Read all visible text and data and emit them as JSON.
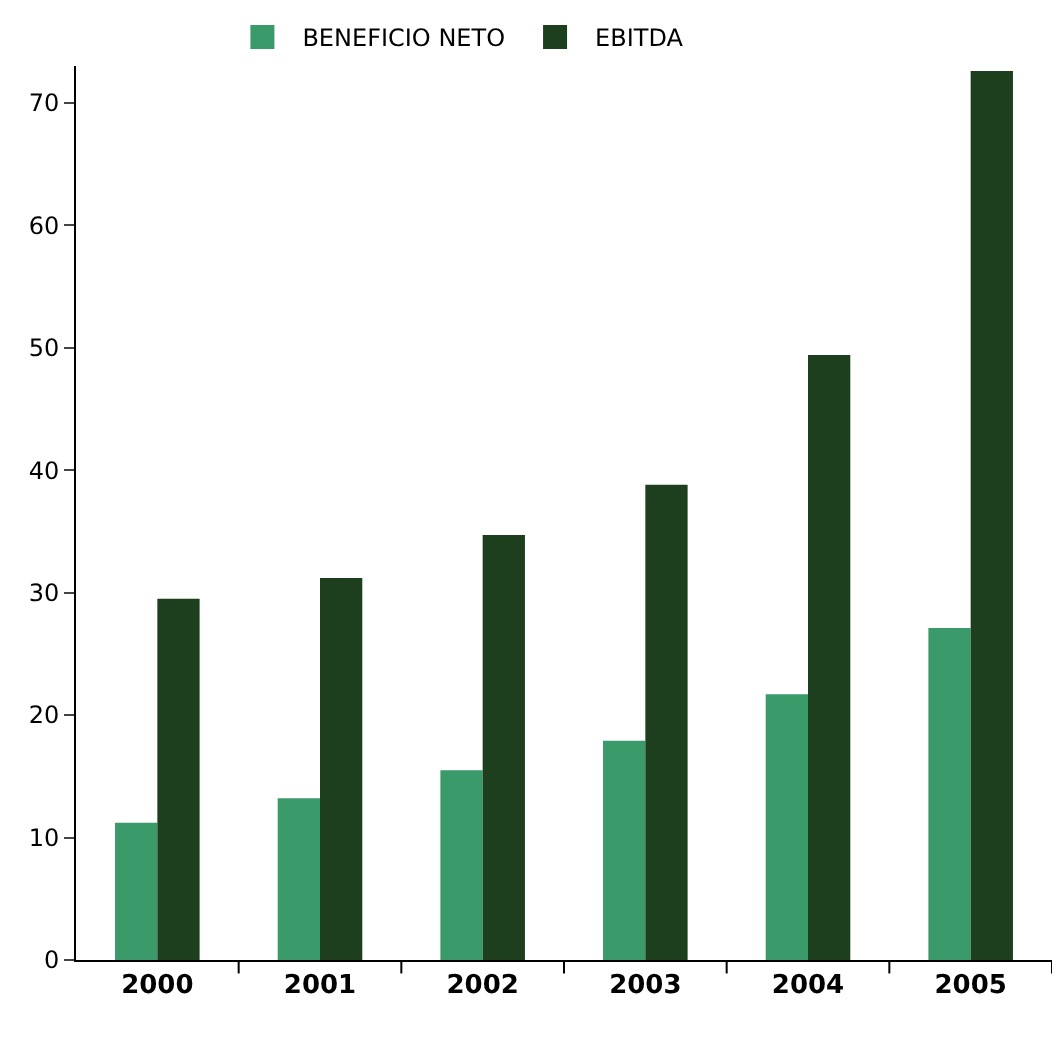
{
  "chart_data": {
    "type": "bar",
    "categories": [
      "2000",
      "2001",
      "2002",
      "2003",
      "2004",
      "2005"
    ],
    "series": [
      {
        "name": "BENEFICIO NETO",
        "color": "#3a9a6a",
        "values": [
          11.2,
          13.2,
          15.5,
          17.9,
          21.7,
          27.1
        ]
      },
      {
        "name": "EBITDA",
        "color": "#1e3f1e",
        "values": [
          29.5,
          31.2,
          34.7,
          38.8,
          49.4,
          72.6
        ]
      }
    ],
    "ylim": [
      0,
      73
    ],
    "yticks": [
      0,
      10,
      20,
      30,
      40,
      50,
      60,
      70
    ],
    "grid": false,
    "legend": "top"
  }
}
